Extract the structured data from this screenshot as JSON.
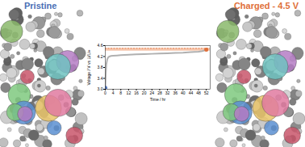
{
  "chart_data": {
    "type": "line",
    "x_label": "Time / hr",
    "y_label": "Voltage / V vs Li/Li+",
    "annotations": [
      {
        "text": "Pristine",
        "color": "#4a6fb5"
      },
      {
        "text": "Charged - 4.5 V",
        "color": "#e0703a"
      }
    ],
    "series": [
      {
        "name": "Voltage",
        "color": "#b0b0b0",
        "x": [
          0,
          0.2,
          0.5,
          1,
          1.5,
          2,
          3,
          4,
          6,
          8,
          12,
          16,
          20,
          24,
          28,
          32,
          36,
          40,
          44,
          48,
          50,
          52
        ],
        "values": [
          3.05,
          3.5,
          3.9,
          4.1,
          4.17,
          4.2,
          4.22,
          4.23,
          4.24,
          4.25,
          4.27,
          4.28,
          4.29,
          4.3,
          4.31,
          4.32,
          4.33,
          4.34,
          4.36,
          4.38,
          4.4,
          4.45
        ]
      }
    ],
    "points": [
      {
        "x": 0,
        "y": 3.05,
        "color": "#4a6fb5"
      },
      {
        "x": 52,
        "y": 4.45,
        "color": "#e0703a"
      }
    ],
    "band": {
      "y": [
        4.4,
        4.5
      ],
      "color": "#f6c7ae",
      "line_style": "dashed",
      "line_color": "#e0703a"
    },
    "xlim": [
      0,
      54
    ],
    "xticks": [
      0,
      4,
      8,
      12,
      16,
      20,
      24,
      28,
      32,
      36,
      40,
      44,
      48,
      52
    ],
    "ylim": [
      3.0,
      4.6
    ],
    "yticks": [
      {
        "value": 3.0,
        "label": "3.0"
      },
      3.4,
      3.8,
      4.2,
      4.6
    ],
    "grid": false
  }
}
